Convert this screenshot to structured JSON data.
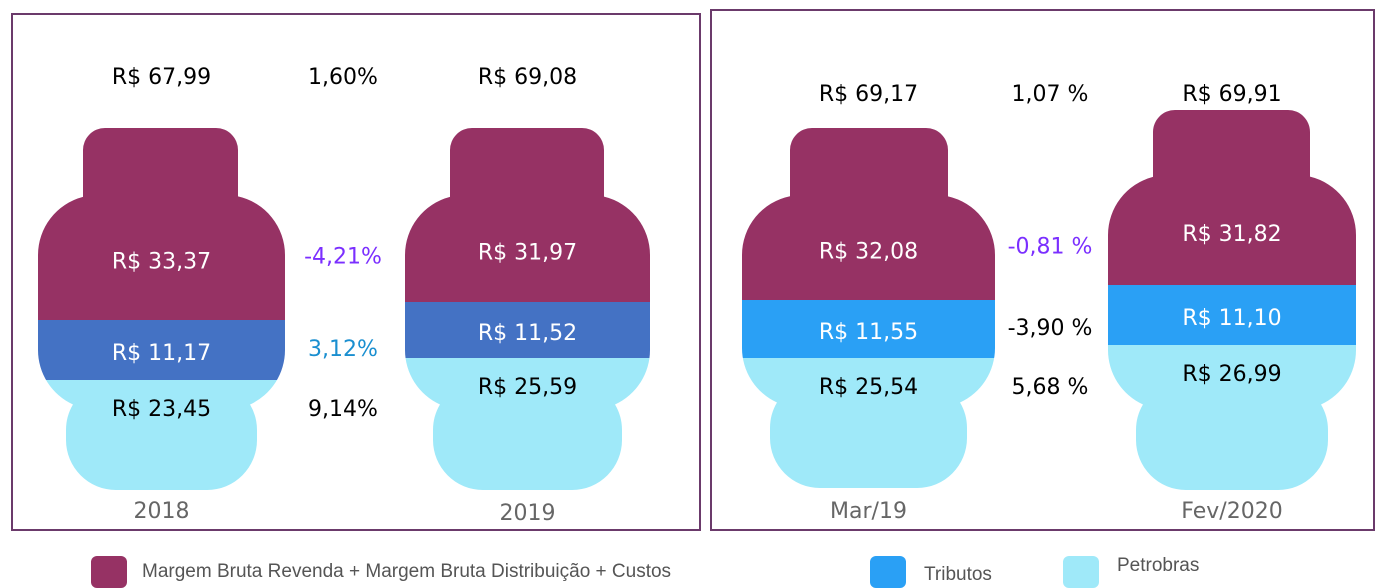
{
  "panels": [
    {
      "cylinders": [
        {
          "label": "2018",
          "total": "R$ 67,99",
          "margem": "R$ 33,37",
          "tributos": "R$ 11,17",
          "petrobras": "R$ 23,45"
        },
        {
          "label": "2019",
          "total": "R$ 69,08",
          "margem": "R$ 31,97",
          "tributos": "R$ 11,52",
          "petrobras": "R$ 25,59"
        }
      ],
      "changes": {
        "total": "1,60%",
        "margem": "-4,21%",
        "tributos": "3,12%",
        "petrobras": "9,14%"
      }
    },
    {
      "cylinders": [
        {
          "label": "Mar/19",
          "total": "R$ 69,17",
          "margem": "R$ 32,08",
          "tributos": "R$ 11,55",
          "petrobras": "R$ 25,54"
        },
        {
          "label": "Fev/2020",
          "total": "R$ 69,91",
          "margem": "R$ 31,82",
          "tributos": "R$ 11,10",
          "petrobras": "R$ 26,99"
        }
      ],
      "changes": {
        "total": "1,07 %",
        "margem": "-0,81 %",
        "tributos": "-3,90 %",
        "petrobras": "5,68 %"
      }
    }
  ],
  "legend": [
    "Margem Bruta Revenda + Margem Bruta Distribuição + Custos",
    "Tributos",
    "Petrobras"
  ]
}
